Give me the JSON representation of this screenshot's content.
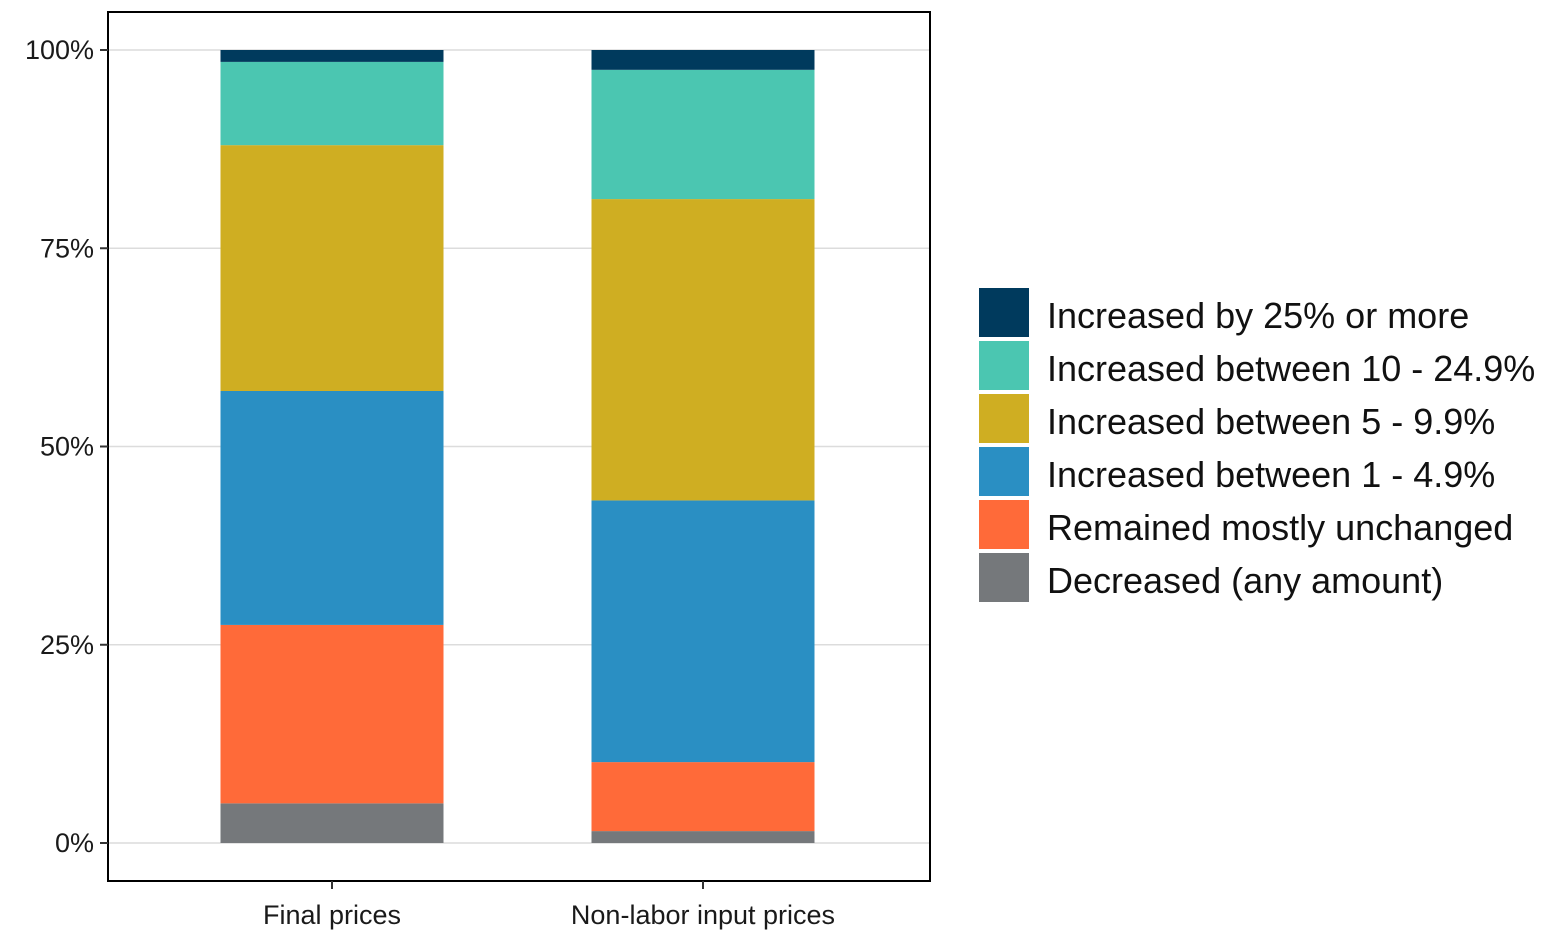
{
  "chart_data": {
    "type": "bar",
    "stacked": true,
    "title": "",
    "xlabel": "",
    "ylabel": "",
    "categories": [
      "Final prices",
      "Non-labor input prices"
    ],
    "ylim": [
      0,
      100
    ],
    "yticks": [
      {
        "value": 0,
        "label": "0%"
      },
      {
        "value": 25,
        "label": "25%"
      },
      {
        "value": 50,
        "label": "50%"
      },
      {
        "value": 75,
        "label": "75%"
      },
      {
        "value": 100,
        "label": "100%"
      }
    ],
    "series": [
      {
        "name": "Decreased (any amount)",
        "color": "#75787b",
        "values": [
          5.0,
          1.5
        ]
      },
      {
        "name": "Remained mostly unchanged",
        "color": "#ff6a39",
        "values": [
          22.5,
          8.7
        ]
      },
      {
        "name": "Increased between 1 - 4.9%",
        "color": "#2a8fc3",
        "values": [
          29.5,
          33.0
        ]
      },
      {
        "name": "Increased between 5 - 9.9%",
        "color": "#cfae22",
        "values": [
          31.0,
          38.0
        ]
      },
      {
        "name": "Increased between 10 - 24.9%",
        "color": "#4bc6b1",
        "values": [
          10.5,
          16.3
        ]
      },
      {
        "name": "Increased by 25% or more",
        "color": "#003a5d",
        "values": [
          1.5,
          2.5
        ]
      }
    ],
    "legend_order": [
      "Increased by 25% or more",
      "Increased between 10 - 24.9%",
      "Increased between 5 - 9.9%",
      "Increased between 1 - 4.9%",
      "Remained mostly unchanged",
      "Decreased (any amount)"
    ],
    "grid": "horizontal",
    "legend_position": "right"
  }
}
